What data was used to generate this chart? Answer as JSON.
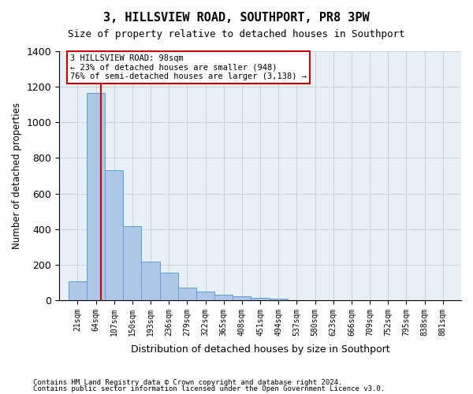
{
  "title": "3, HILLSVIEW ROAD, SOUTHPORT, PR8 3PW",
  "subtitle": "Size of property relative to detached houses in Southport",
  "xlabel": "Distribution of detached houses by size in Southport",
  "ylabel": "Number of detached properties",
  "bar_color": "#aec6e8",
  "bar_edge_color": "#5a9fd4",
  "background_color": "#ffffff",
  "grid_color": "#cccccc",
  "categories": [
    "21sqm",
    "64sqm",
    "107sqm",
    "150sqm",
    "193sqm",
    "236sqm",
    "279sqm",
    "322sqm",
    "365sqm",
    "408sqm",
    "451sqm",
    "494sqm",
    "537sqm",
    "580sqm",
    "623sqm",
    "666sqm",
    "709sqm",
    "752sqm",
    "795sqm",
    "838sqm",
    "881sqm"
  ],
  "bin_edges": [
    21,
    64,
    107,
    150,
    193,
    236,
    279,
    322,
    365,
    408,
    451,
    494,
    537,
    580,
    623,
    666,
    709,
    752,
    795,
    838,
    881,
    924
  ],
  "bin_heights": [
    107,
    1163,
    730,
    418,
    215,
    153,
    72,
    48,
    32,
    20,
    15,
    10,
    0,
    0,
    0,
    0,
    0,
    0,
    0,
    0,
    0
  ],
  "ylim": [
    0,
    1400
  ],
  "yticks": [
    0,
    200,
    400,
    600,
    800,
    1000,
    1200,
    1400
  ],
  "property_size": 98,
  "property_line_x": 98,
  "annotation_text": "3 HILLSVIEW ROAD: 98sqm\n← 23% of detached houses are smaller (948)\n76% of semi-detached houses are larger (3,138) →",
  "annotation_box_color": "#ffffff",
  "annotation_border_color": "#cc0000",
  "red_line_color": "#cc0000",
  "footer_line1": "Contains HM Land Registry data © Crown copyright and database right 2024.",
  "footer_line2": "Contains public sector information licensed under the Open Government Licence v3.0."
}
